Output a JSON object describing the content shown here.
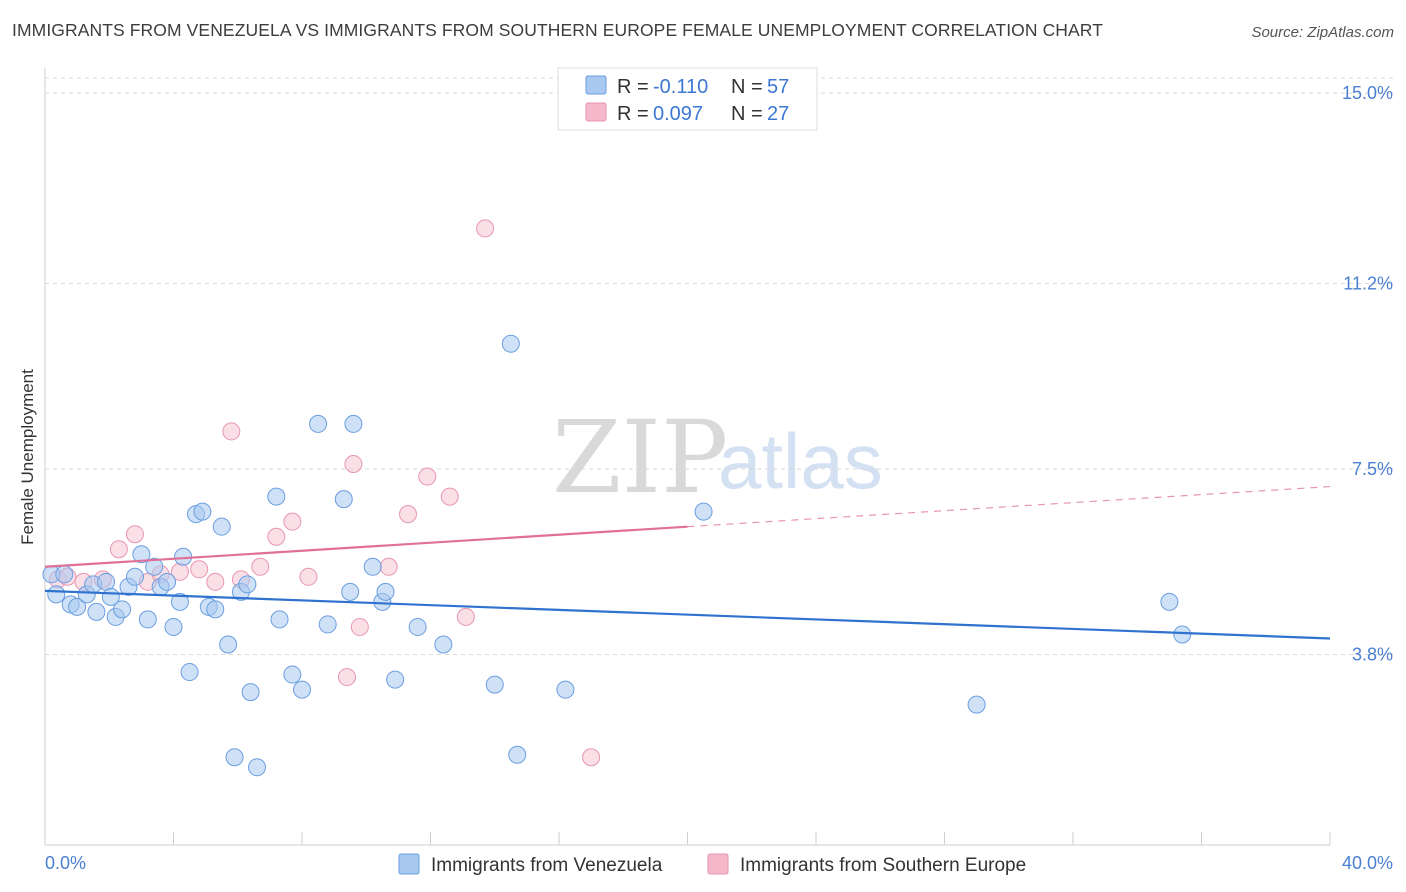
{
  "header": {
    "title": "IMMIGRANTS FROM VENEZUELA VS IMMIGRANTS FROM SOUTHERN EUROPE FEMALE UNEMPLOYMENT CORRELATION CHART",
    "source": "Source: ZipAtlas.com"
  },
  "watermark": {
    "zip": "ZIP",
    "atlas": "atlas"
  },
  "legend": {
    "r_label": "R =",
    "n_label": "N =",
    "rows": [
      {
        "r": "-0.110",
        "n": "57",
        "color": "#a8c8f0"
      },
      {
        "r": "0.097",
        "n": "27",
        "color": "#f5b8ca"
      }
    ]
  },
  "bottom_legend": [
    {
      "label": "Immigrants from Venezuela",
      "color": "#a8c8f0"
    },
    {
      "label": "Immigrants from Southern Europe",
      "color": "#f5b8ca"
    }
  ],
  "colors": {
    "venezuela_fill": "#a8c8f0",
    "venezuela_stroke": "#6b9ee0",
    "venezuela_line": "#2f72d0",
    "seurope_fill": "#f5c4d3",
    "seurope_stroke": "#e896b0",
    "seurope_line": "#e07098",
    "grid": "#d8d8d8",
    "tick_label": "#4a7fd1"
  },
  "chart_data": {
    "type": "scatter",
    "title": "IMMIGRANTS FROM VENEZUELA VS IMMIGRANTS FROM SOUTHERN EUROPE FEMALE UNEMPLOYMENT CORRELATION CHART",
    "xlabel": "",
    "ylabel": "Female Unemployment",
    "xlim": [
      0,
      40
    ],
    "ylim": [
      0,
      15.5
    ],
    "x_tick_labels": [
      "0.0%",
      "40.0%"
    ],
    "y_ticks": [
      3.8,
      7.5,
      11.2,
      15.0
    ],
    "y_tick_labels": [
      "3.8%",
      "7.5%",
      "11.2%",
      "15.0%"
    ],
    "grid": true,
    "series": [
      {
        "name": "Immigrants from Venezuela",
        "r": -0.11,
        "n": 57,
        "trend": {
          "x0": 0,
          "y0": 5.07,
          "x1": 40,
          "y1": 4.12
        },
        "points": [
          [
            0.2,
            5.4
          ],
          [
            0.35,
            5.0
          ],
          [
            0.6,
            5.4
          ],
          [
            0.8,
            4.8
          ],
          [
            1.0,
            4.75
          ],
          [
            1.3,
            5.0
          ],
          [
            1.5,
            5.2
          ],
          [
            1.6,
            4.65
          ],
          [
            1.9,
            5.25
          ],
          [
            2.2,
            4.55
          ],
          [
            2.4,
            4.7
          ],
          [
            2.6,
            5.15
          ],
          [
            2.8,
            5.35
          ],
          [
            3.0,
            5.8
          ],
          [
            3.2,
            4.5
          ],
          [
            3.4,
            5.55
          ],
          [
            3.6,
            5.15
          ],
          [
            3.8,
            5.25
          ],
          [
            4.0,
            4.35
          ],
          [
            4.2,
            4.85
          ],
          [
            4.3,
            5.75
          ],
          [
            4.5,
            3.45
          ],
          [
            4.7,
            6.6
          ],
          [
            4.9,
            6.65
          ],
          [
            5.1,
            4.75
          ],
          [
            5.3,
            4.7
          ],
          [
            5.5,
            6.35
          ],
          [
            5.7,
            4.0
          ],
          [
            5.9,
            1.75
          ],
          [
            6.1,
            5.05
          ],
          [
            6.3,
            5.2
          ],
          [
            6.4,
            3.05
          ],
          [
            6.6,
            1.55
          ],
          [
            7.2,
            6.95
          ],
          [
            7.3,
            4.5
          ],
          [
            7.7,
            3.4
          ],
          [
            8.0,
            3.1
          ],
          [
            8.5,
            8.4
          ],
          [
            8.8,
            4.4
          ],
          [
            9.3,
            6.9
          ],
          [
            9.5,
            5.05
          ],
          [
            9.6,
            8.4
          ],
          [
            10.2,
            5.55
          ],
          [
            10.5,
            4.85
          ],
          [
            10.6,
            5.05
          ],
          [
            10.9,
            3.3
          ],
          [
            11.6,
            4.35
          ],
          [
            14.0,
            3.2
          ],
          [
            14.5,
            10.0
          ],
          [
            14.7,
            1.8
          ],
          [
            16.2,
            3.1
          ],
          [
            20.5,
            6.65
          ],
          [
            29.0,
            2.8
          ],
          [
            35.0,
            4.85
          ],
          [
            35.4,
            4.2
          ],
          [
            2.05,
            4.95
          ],
          [
            12.4,
            4.0
          ]
        ]
      },
      {
        "name": "Immigrants from Southern Europe",
        "r": 0.097,
        "n": 27,
        "trend": {
          "x0": 0,
          "y0": 5.55,
          "x1": 20,
          "y1": 6.35
        },
        "trend_dashed": {
          "x0": 20,
          "y0": 6.35,
          "x1": 40,
          "y1": 7.15
        },
        "points": [
          [
            0.4,
            5.3
          ],
          [
            0.7,
            5.35
          ],
          [
            1.2,
            5.25
          ],
          [
            1.8,
            5.3
          ],
          [
            2.3,
            5.9
          ],
          [
            2.8,
            6.2
          ],
          [
            3.2,
            5.25
          ],
          [
            3.6,
            5.4
          ],
          [
            4.2,
            5.45
          ],
          [
            4.8,
            5.5
          ],
          [
            5.3,
            5.25
          ],
          [
            5.8,
            8.25
          ],
          [
            6.1,
            5.3
          ],
          [
            6.7,
            5.55
          ],
          [
            7.2,
            6.15
          ],
          [
            7.7,
            6.45
          ],
          [
            8.2,
            5.35
          ],
          [
            9.4,
            3.35
          ],
          [
            9.6,
            7.6
          ],
          [
            9.8,
            4.35
          ],
          [
            10.7,
            5.55
          ],
          [
            11.3,
            6.6
          ],
          [
            11.9,
            7.35
          ],
          [
            12.6,
            6.95
          ],
          [
            13.1,
            4.55
          ],
          [
            13.7,
            12.3
          ],
          [
            17.0,
            1.75
          ]
        ]
      }
    ]
  }
}
